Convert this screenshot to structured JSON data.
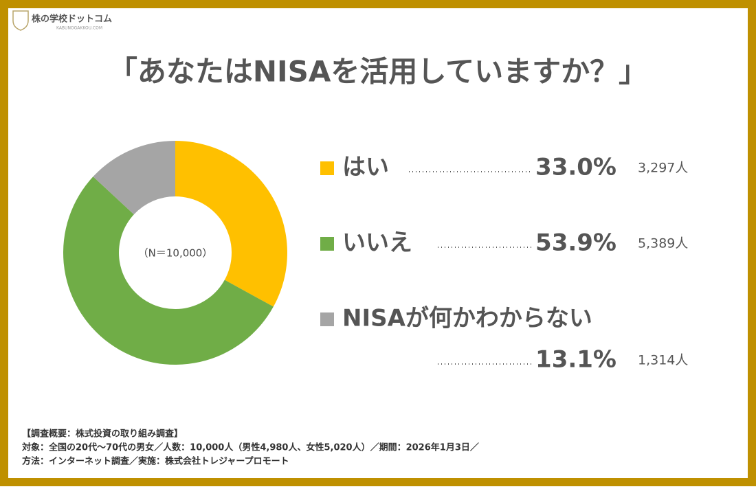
{
  "header": {
    "logo": "株の学校ドットコム",
    "logo_sub": "KABUNOGAKKOU.COM"
  },
  "chart_data": {
    "type": "donut",
    "title": "「あなたはNISAを活用していますか？」",
    "center_label": "（N＝10,000）",
    "categories": [
      "はい",
      "いいえ",
      "NISAが何かわからない"
    ],
    "values": [
      33.0,
      53.9,
      13.1
    ],
    "value_labels": [
      "33.0%",
      "53.9%",
      "13.1%"
    ],
    "count_labels": [
      "3,297人",
      "5,389人",
      "1,314人"
    ],
    "colors": [
      "#FFC000",
      "#70AD47",
      "#A5A5A5"
    ]
  },
  "footer": {
    "lines": [
      "【調査概要：株式投資の取り組み調査】",
      "対象：全国の20代〜70代の男女／人数：10,000人（男性4,980人、女性5,020人）／期間：2026年1月3日／",
      "方法：インターネット調査／実施：株式会社トレジャープロモート"
    ]
  }
}
